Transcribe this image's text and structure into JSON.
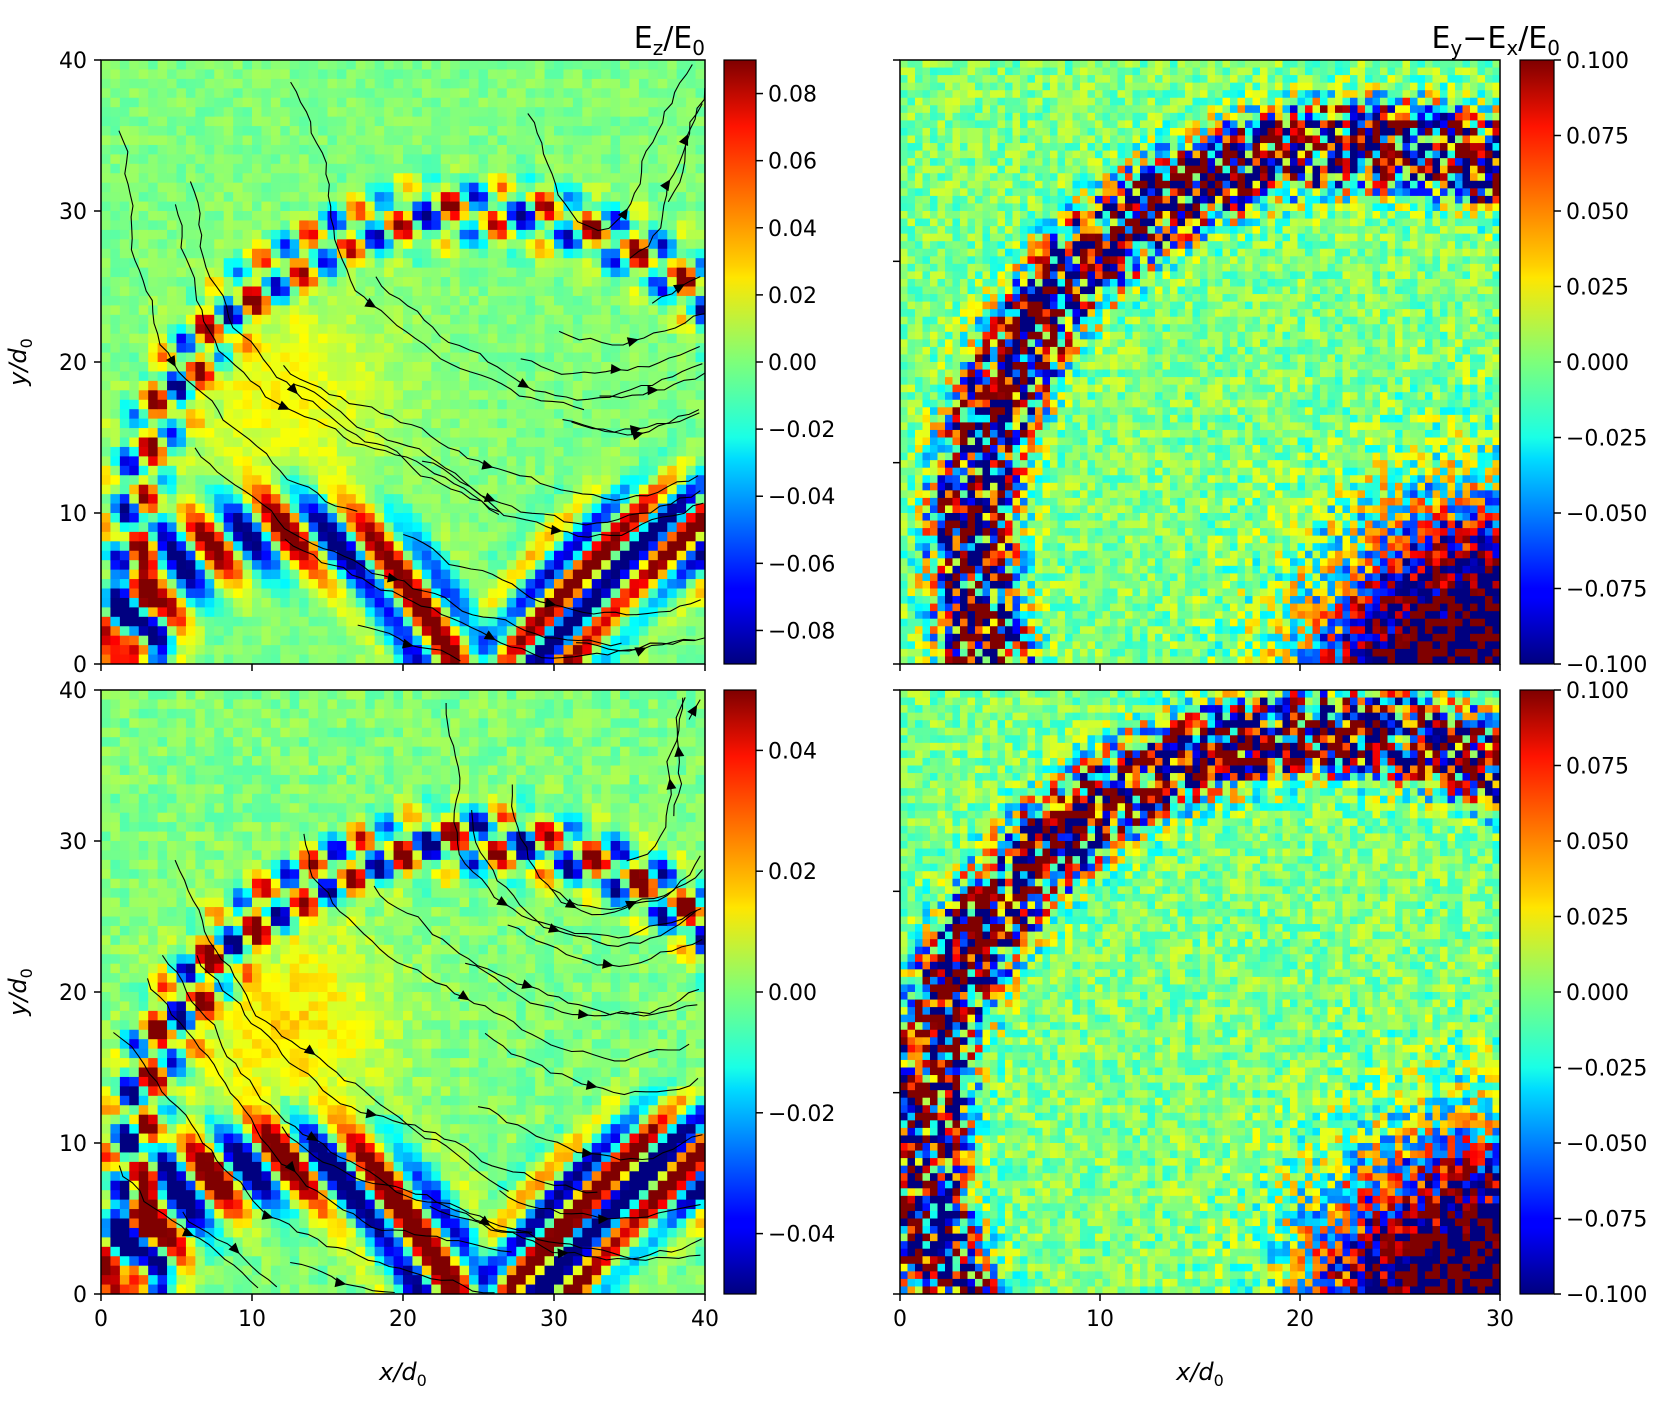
{
  "chart_data": [
    {
      "type": "heatmap",
      "panel": "top-left",
      "title": "E_z/E_0",
      "ylabel": "y/d_0",
      "xlabel": "",
      "xlim": [
        0,
        40
      ],
      "ylim": [
        0,
        40
      ],
      "xticks": [
        0,
        10,
        20,
        30,
        40
      ],
      "yticks": [
        0,
        10,
        20,
        30,
        40
      ],
      "show_x_tick_labels": false,
      "colormap": "jet",
      "colorbar_range": [
        -0.09,
        0.09
      ],
      "colorbar_ticks": [
        "0.08",
        "0.06",
        "0.04",
        "0.02",
        "0.00",
        "−0.02",
        "−0.04",
        "−0.06",
        "−0.08"
      ],
      "colorbar_values": [
        0.08,
        0.06,
        0.04,
        0.02,
        0.0,
        -0.02,
        -0.04,
        -0.06,
        -0.08
      ],
      "overlay": "magnetic field streamlines with arrowheads"
    },
    {
      "type": "heatmap",
      "panel": "top-right",
      "title": "E_y−E_x/E_0",
      "xlim": [
        0,
        30
      ],
      "ylim": [
        0,
        30
      ],
      "xticks": [
        0,
        10,
        20,
        30
      ],
      "show_x_tick_labels": false,
      "colormap": "jet",
      "colorbar_range": [
        -0.1,
        0.1
      ],
      "colorbar_ticks": [
        "0.100",
        "0.075",
        "0.050",
        "0.025",
        "0.000",
        "−0.025",
        "−0.050",
        "−0.075",
        "−0.100"
      ],
      "colorbar_values": [
        0.1,
        0.075,
        0.05,
        0.025,
        0.0,
        -0.025,
        -0.05,
        -0.075,
        -0.1
      ]
    },
    {
      "type": "heatmap",
      "panel": "bottom-left",
      "title": "",
      "ylabel": "y/d_0",
      "xlabel": "x/d_0",
      "xlim": [
        0,
        40
      ],
      "ylim": [
        0,
        40
      ],
      "xticks": [
        0,
        10,
        20,
        30,
        40
      ],
      "yticks": [
        0,
        10,
        20,
        30,
        40
      ],
      "colormap": "jet",
      "colorbar_range": [
        -0.05,
        0.05
      ],
      "colorbar_ticks": [
        "0.04",
        "0.02",
        "0.00",
        "−0.02",
        "−0.04"
      ],
      "colorbar_values": [
        0.04,
        0.02,
        0.0,
        -0.02,
        -0.04
      ],
      "overlay": "magnetic field streamlines with arrowheads"
    },
    {
      "type": "heatmap",
      "panel": "bottom-right",
      "title": "",
      "xlabel": "x/d_0",
      "xlim": [
        0,
        30
      ],
      "ylim": [
        0,
        30
      ],
      "xticks": [
        0,
        10,
        20,
        30
      ],
      "colormap": "jet",
      "colorbar_range": [
        -0.1,
        0.1
      ],
      "colorbar_ticks": [
        "0.100",
        "0.075",
        "0.050",
        "0.025",
        "0.000",
        "−0.025",
        "−0.050",
        "−0.075",
        "−0.100"
      ],
      "colorbar_values": [
        0.1,
        0.075,
        0.05,
        0.025,
        0.0,
        -0.025,
        -0.05,
        -0.075,
        -0.1
      ]
    }
  ]
}
